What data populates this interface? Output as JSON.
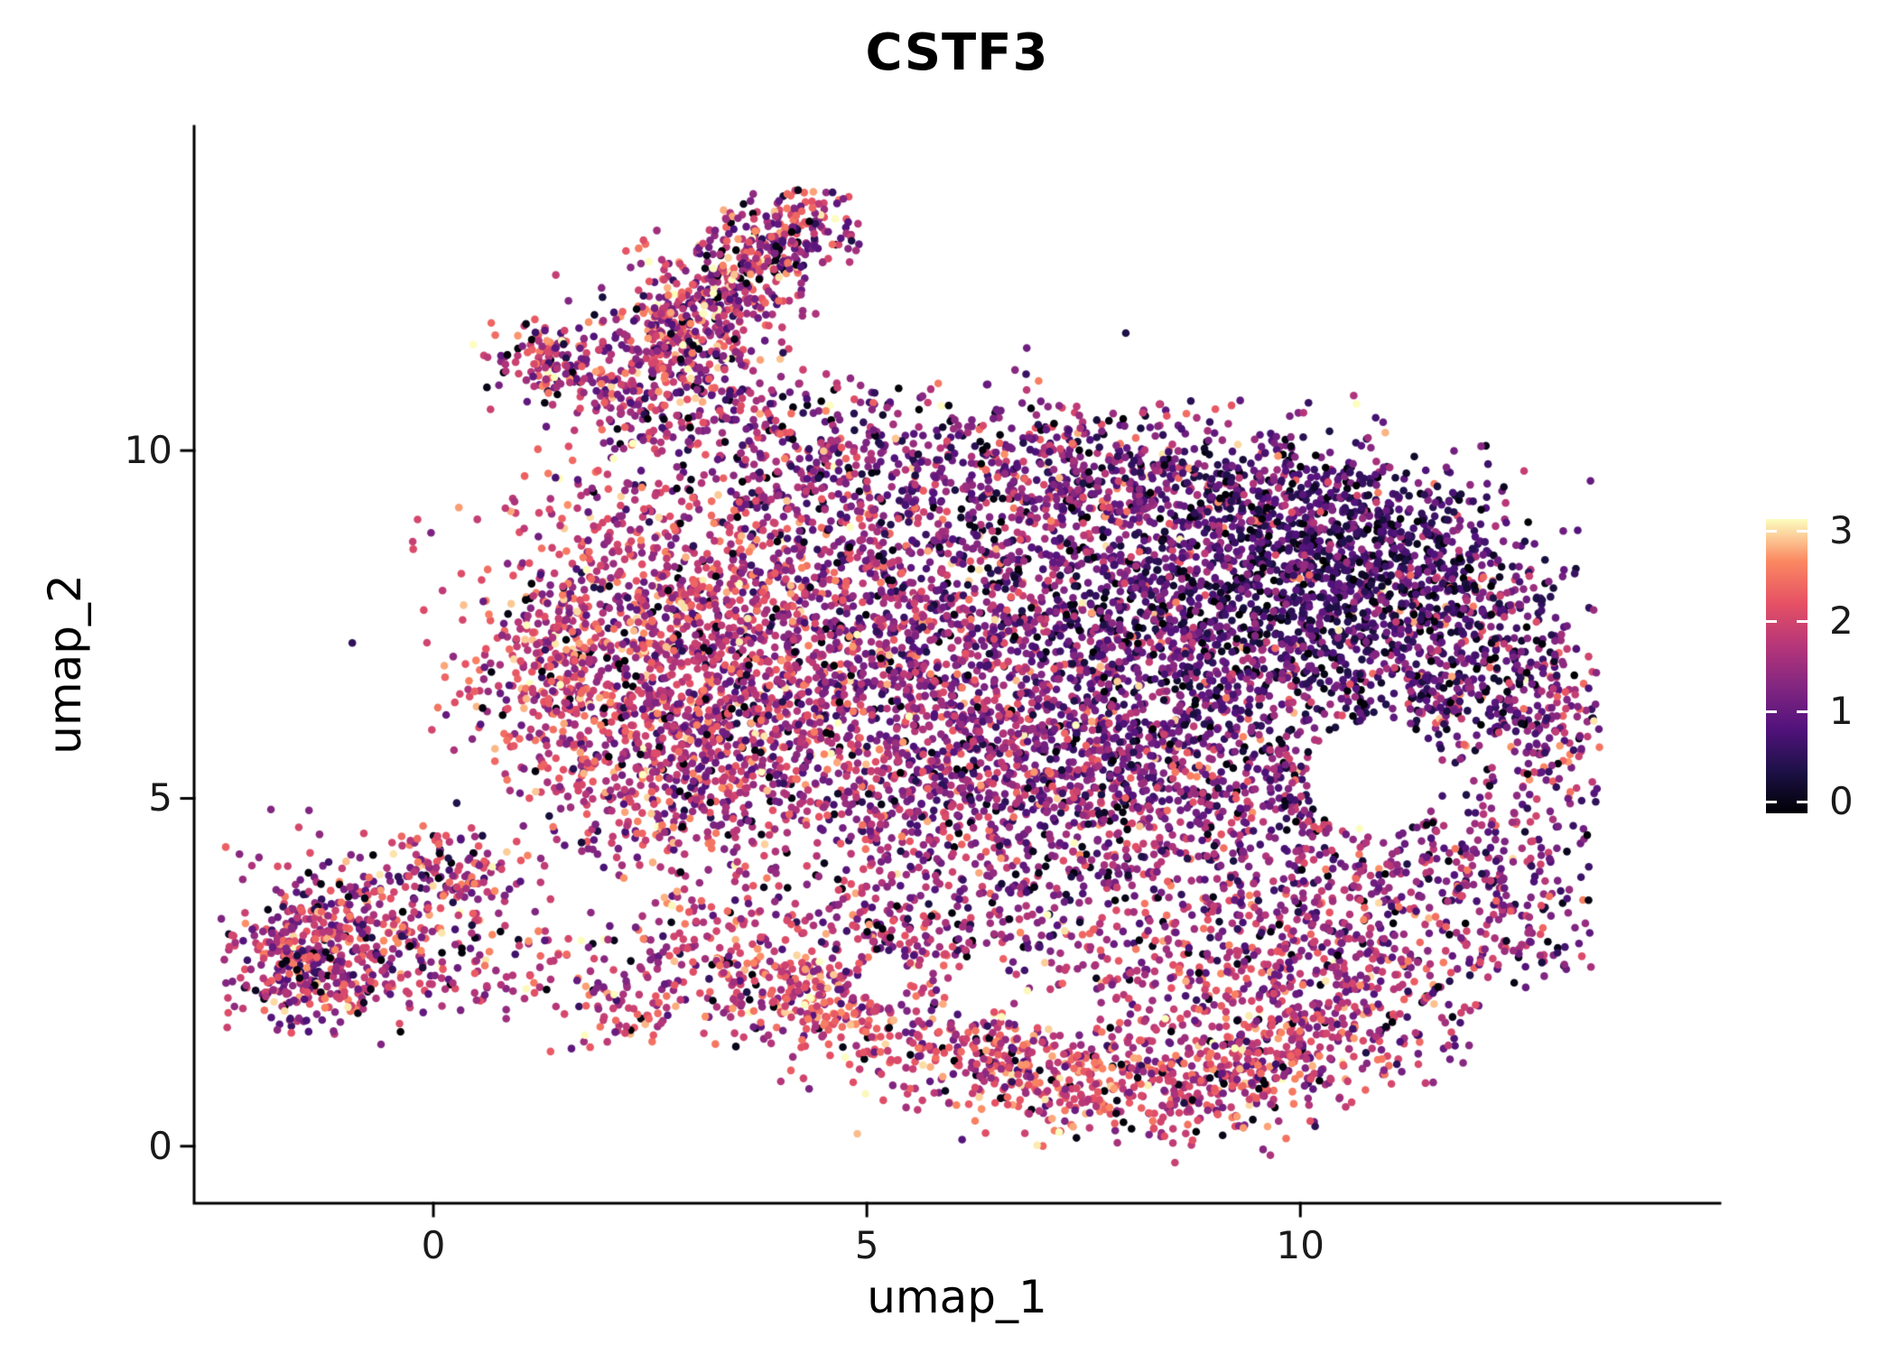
{
  "chart_data": {
    "type": "scatter",
    "title": "CSTF3",
    "xlabel": "umap_1",
    "ylabel": "umap_2",
    "x_ticks": [
      0,
      5,
      10
    ],
    "y_ticks": [
      0,
      5,
      10
    ],
    "x_range": [
      -2.76,
      14.84
    ],
    "y_range": [
      -0.82,
      14.66
    ],
    "grid": false,
    "legend_position": "right",
    "point_radius_px": 4.3,
    "seed": 42,
    "colorbar": {
      "vmin": 0,
      "vmax": 3,
      "ticks": [
        0,
        1,
        2,
        3
      ],
      "colormap": "magma",
      "stops": [
        {
          "t": 0.0,
          "color": "#000004"
        },
        {
          "t": 0.143,
          "color": "#1d1147"
        },
        {
          "t": 0.286,
          "color": "#51127c"
        },
        {
          "t": 0.429,
          "color": "#822681"
        },
        {
          "t": 0.571,
          "color": "#b63679"
        },
        {
          "t": 0.714,
          "color": "#e65164"
        },
        {
          "t": 0.857,
          "color": "#fb8861"
        },
        {
          "t": 1.0,
          "color": "#fcfdbf"
        }
      ]
    },
    "noise": {
      "zero_fraction": 0.05,
      "zero_range": [
        0,
        0.15
      ],
      "bright_fraction": 0.015,
      "bright_range": [
        2.4,
        3.0
      ]
    },
    "clusters": [
      {
        "c": [
          3.35,
          12.15
        ],
        "s": [
          1.05,
          0.38
        ],
        "r": 55,
        "n": 420,
        "v": [
          1.7,
          0.6
        ]
      },
      {
        "c": [
          4.05,
          13.1
        ],
        "s": [
          0.45,
          0.3
        ],
        "r": 30,
        "n": 140,
        "v": [
          1.5,
          0.6
        ]
      },
      {
        "c": [
          3.0,
          11.9
        ],
        "s": [
          0.6,
          0.55
        ],
        "r": 45,
        "n": 150,
        "v": [
          1.8,
          0.6
        ]
      },
      {
        "c": [
          1.4,
          11.3
        ],
        "s": [
          0.33,
          0.3
        ],
        "r": 0,
        "n": 130,
        "v": [
          1.6,
          0.6
        ]
      },
      {
        "c": [
          2.3,
          11.1
        ],
        "s": [
          0.55,
          0.45
        ],
        "r": 20,
        "n": 110,
        "v": [
          1.5,
          0.6
        ]
      },
      {
        "c": [
          3.1,
          10.6
        ],
        "s": [
          0.5,
          0.4
        ],
        "r": 0,
        "n": 90,
        "v": [
          1.4,
          0.6
        ]
      },
      {
        "c": [
          4.3,
          10.3
        ],
        "s": [
          0.7,
          0.45
        ],
        "r": 0,
        "n": 110,
        "v": [
          1.3,
          0.6
        ]
      },
      {
        "c": [
          6.8,
          9.6
        ],
        "s": [
          1.6,
          0.5
        ],
        "r": 0,
        "n": 400,
        "v": [
          1.2,
          0.6
        ]
      },
      {
        "c": [
          6.5,
          10.15
        ],
        "s": [
          1.3,
          0.35
        ],
        "r": 0,
        "n": 90,
        "v": [
          1.3,
          0.6
        ]
      },
      {
        "c": [
          9.0,
          9.4
        ],
        "s": [
          1.0,
          0.5
        ],
        "r": -10,
        "n": 260,
        "v": [
          1.0,
          0.55
        ]
      },
      {
        "c": [
          10.9,
          8.9
        ],
        "s": [
          0.8,
          0.6
        ],
        "r": -30,
        "n": 250,
        "v": [
          0.8,
          0.5
        ]
      },
      {
        "c": [
          11.9,
          8.0
        ],
        "s": [
          0.6,
          0.7
        ],
        "r": 0,
        "n": 220,
        "v": [
          0.9,
          0.5
        ]
      },
      {
        "c": [
          2.3,
          7.6
        ],
        "s": [
          1.0,
          1.2
        ],
        "r": 0,
        "n": 700,
        "v": [
          1.8,
          0.55
        ]
      },
      {
        "c": [
          1.6,
          6.6
        ],
        "s": [
          0.6,
          0.7
        ],
        "r": 0,
        "n": 240,
        "v": [
          1.9,
          0.5
        ]
      },
      {
        "c": [
          4.0,
          7.9
        ],
        "s": [
          1.1,
          1.2
        ],
        "r": 0,
        "n": 700,
        "v": [
          1.6,
          0.55
        ]
      },
      {
        "c": [
          5.9,
          7.6
        ],
        "s": [
          1.2,
          1.3
        ],
        "r": 0,
        "n": 750,
        "v": [
          1.4,
          0.55
        ]
      },
      {
        "c": [
          7.8,
          7.7
        ],
        "s": [
          1.2,
          1.2
        ],
        "r": 0,
        "n": 750,
        "v": [
          1.1,
          0.55
        ]
      },
      {
        "c": [
          9.4,
          7.7
        ],
        "s": [
          1.1,
          1.0
        ],
        "r": 0,
        "n": 700,
        "v": [
          0.75,
          0.5
        ]
      },
      {
        "c": [
          10.4,
          8.2
        ],
        "s": [
          0.8,
          0.8
        ],
        "r": 0,
        "n": 400,
        "v": [
          0.6,
          0.45
        ]
      },
      {
        "c": [
          4.9,
          5.9
        ],
        "s": [
          1.4,
          0.9
        ],
        "r": 0,
        "n": 500,
        "v": [
          1.5,
          0.55
        ]
      },
      {
        "c": [
          6.8,
          5.6
        ],
        "s": [
          1.3,
          0.9
        ],
        "r": 0,
        "n": 480,
        "v": [
          1.35,
          0.55
        ]
      },
      {
        "c": [
          8.6,
          5.6
        ],
        "s": [
          1.2,
          0.9
        ],
        "r": 0,
        "n": 450,
        "v": [
          1.2,
          0.55
        ]
      },
      {
        "c": [
          3.3,
          6.1
        ],
        "s": [
          0.8,
          0.8
        ],
        "r": 0,
        "n": 330,
        "v": [
          1.7,
          0.5
        ]
      },
      {
        "c": [
          2.6,
          4.9
        ],
        "s": [
          0.55,
          0.55
        ],
        "r": 0,
        "n": 170,
        "v": [
          1.7,
          0.55
        ]
      },
      {
        "c": [
          12.4,
          6.9
        ],
        "s": [
          0.55,
          0.75
        ],
        "r": 0,
        "n": 230,
        "v": [
          1.1,
          0.6
        ]
      },
      {
        "c": [
          12.9,
          5.6
        ],
        "s": [
          0.35,
          0.8
        ],
        "r": 0,
        "n": 140,
        "v": [
          1.3,
          0.6
        ]
      },
      {
        "c": [
          12.0,
          3.9
        ],
        "s": [
          0.6,
          0.6
        ],
        "r": 0,
        "n": 170,
        "v": [
          1.4,
          0.6
        ]
      },
      {
        "c": [
          11.3,
          6.6
        ],
        "s": [
          0.6,
          0.6
        ],
        "r": 0,
        "n": 190,
        "v": [
          1.0,
          0.55
        ]
      },
      {
        "c": [
          10.1,
          4.6
        ],
        "s": [
          0.9,
          0.8
        ],
        "r": 0,
        "n": 330,
        "v": [
          1.3,
          0.6
        ]
      },
      {
        "c": [
          4.1,
          2.35
        ],
        "s": [
          0.75,
          0.4
        ],
        "r": -25,
        "n": 220,
        "v": [
          2.0,
          0.5
        ]
      },
      {
        "c": [
          5.9,
          1.45
        ],
        "s": [
          1.0,
          0.4
        ],
        "r": -15,
        "n": 270,
        "v": [
          1.9,
          0.5
        ]
      },
      {
        "c": [
          7.9,
          0.95
        ],
        "s": [
          1.2,
          0.42
        ],
        "r": -3,
        "n": 400,
        "v": [
          1.95,
          0.5
        ]
      },
      {
        "c": [
          9.7,
          1.4
        ],
        "s": [
          0.8,
          0.5
        ],
        "r": 28,
        "n": 310,
        "v": [
          1.8,
          0.55
        ]
      },
      {
        "c": [
          8.9,
          2.6
        ],
        "s": [
          1.3,
          0.7
        ],
        "r": 5,
        "n": 380,
        "v": [
          1.6,
          0.55
        ]
      },
      {
        "c": [
          10.8,
          2.5
        ],
        "s": [
          0.6,
          0.7
        ],
        "r": 40,
        "n": 210,
        "v": [
          1.5,
          0.55
        ]
      },
      {
        "c": [
          6.6,
          3.9
        ],
        "s": [
          1.5,
          0.9
        ],
        "r": 0,
        "n": 430,
        "v": [
          1.45,
          0.55
        ]
      },
      {
        "c": [
          5.2,
          2.9
        ],
        "s": [
          0.8,
          0.55
        ],
        "r": -15,
        "n": 190,
        "v": [
          1.7,
          0.5
        ]
      },
      {
        "c": [
          -0.95,
          3.0
        ],
        "s": [
          0.7,
          0.6
        ],
        "r": 10,
        "n": 470,
        "v": [
          1.7,
          0.6
        ]
      },
      {
        "c": [
          -1.6,
          2.5
        ],
        "s": [
          0.35,
          0.4
        ],
        "r": 0,
        "n": 130,
        "v": [
          1.5,
          0.6
        ]
      },
      {
        "c": [
          0.25,
          3.9
        ],
        "s": [
          0.4,
          0.35
        ],
        "r": 20,
        "n": 110,
        "v": [
          1.6,
          0.55
        ]
      },
      {
        "c": [
          1.0,
          2.6
        ],
        "s": [
          0.5,
          0.4
        ],
        "r": 0,
        "n": 75,
        "v": [
          1.8,
          0.5
        ]
      },
      {
        "c": [
          2.3,
          2.0
        ],
        "s": [
          0.5,
          0.3
        ],
        "r": 0,
        "n": 95,
        "v": [
          1.9,
          0.5
        ]
      },
      {
        "c": [
          3.0,
          3.3
        ],
        "s": [
          0.5,
          0.4
        ],
        "r": 0,
        "n": 70,
        "v": [
          1.7,
          0.5
        ]
      },
      {
        "c": [
          12.6,
          2.9
        ],
        "s": [
          0.4,
          0.4
        ],
        "r": 0,
        "n": 70,
        "v": [
          1.4,
          0.6
        ]
      }
    ],
    "holes": [
      {
        "c": [
          10.85,
          5.35
        ],
        "r": 0.78
      },
      {
        "c": [
          6.3,
          2.28
        ],
        "r": 0.38
      },
      {
        "c": [
          7.35,
          1.95
        ],
        "r": 0.35
      },
      {
        "c": [
          5.2,
          2.35
        ],
        "r": 0.3
      }
    ]
  }
}
